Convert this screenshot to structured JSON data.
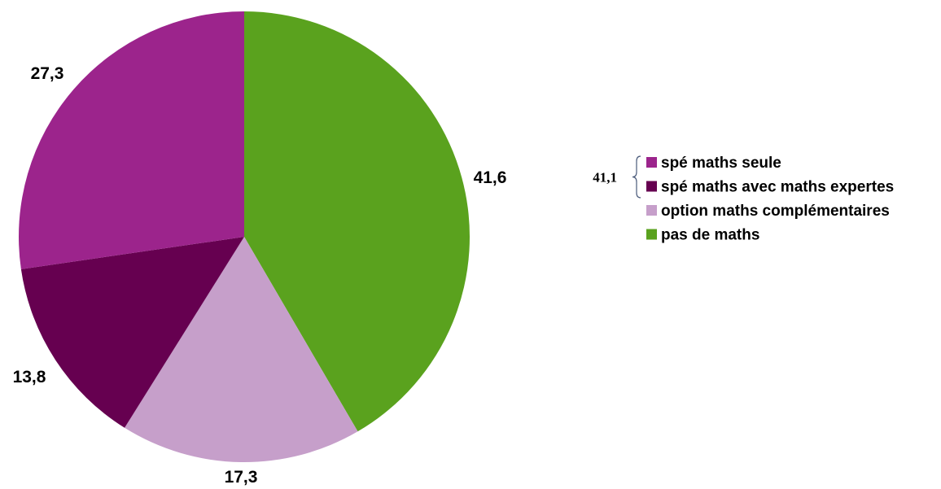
{
  "chart_data": {
    "type": "pie",
    "title": "",
    "categories": [
      "spé maths seule",
      "spé maths avec maths expertes",
      "option maths complémentaires",
      "pas de maths"
    ],
    "values": [
      27.3,
      13.8,
      17.3,
      41.6
    ],
    "value_labels": [
      "27,3",
      "13,8",
      "17,3",
      "41,6"
    ],
    "colors": [
      "#9c248c",
      "#660050",
      "#c69fca",
      "#5aa21e"
    ],
    "legend_placement": "right",
    "annotation": {
      "text": "41,1",
      "groups": [
        "spé maths seule",
        "spé maths avec maths expertes"
      ]
    }
  }
}
